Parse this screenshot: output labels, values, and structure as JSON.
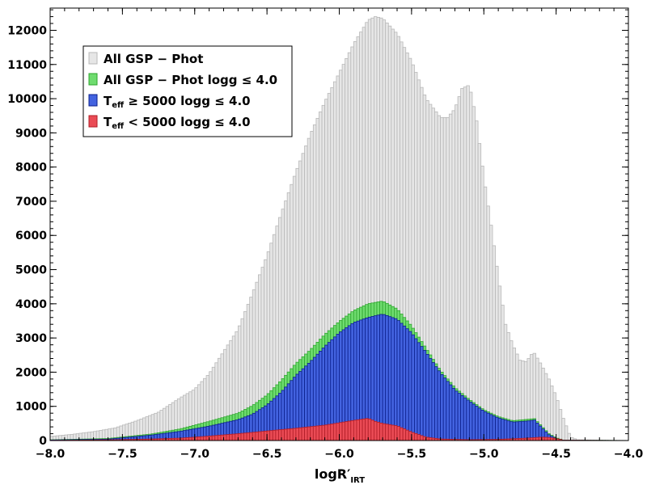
{
  "chart_data": {
    "type": "bar",
    "xlabel": "logR′",
    "xlabel_sub": "IRT",
    "ylabel": "",
    "xlim": [
      -8.0,
      -4.0
    ],
    "ylim": [
      0,
      12650
    ],
    "bin_width": 0.02,
    "x_ticks": [
      "−8.0",
      "−7.5",
      "−7.0",
      "−6.5",
      "−6.0",
      "−5.5",
      "−5.0",
      "−4.5",
      "−4.0"
    ],
    "x_tick_values": [
      -8.0,
      -7.5,
      -7.0,
      -6.5,
      -6.0,
      -5.5,
      -5.0,
      -4.5,
      -4.0
    ],
    "y_ticks": [
      "0",
      "1000",
      "2000",
      "3000",
      "4000",
      "5000",
      "6000",
      "7000",
      "8000",
      "9000",
      "10000",
      "11000",
      "12000"
    ],
    "y_tick_values": [
      0,
      1000,
      2000,
      3000,
      4000,
      5000,
      6000,
      7000,
      8000,
      9000,
      10000,
      11000,
      12000
    ],
    "legend_position": "top-left",
    "legend": [
      {
        "label": "All GSP − Phot",
        "color": "#e6e6e6",
        "edge": "#b8b8b8"
      },
      {
        "label_pre": "All GSP − Phot  logg ",
        "label_sym": "≤",
        "label_post": " 4.0",
        "color": "#6fdc6f",
        "edge": "#2ea52e"
      },
      {
        "label_pre": "T",
        "label_sub": "eff",
        "label_sym": " ≥ ",
        "label_post": "5000  logg ≤ 4.0",
        "color": "#4363e0",
        "edge": "#0b1f8c"
      },
      {
        "label_pre": "T",
        "label_sub": "eff",
        "label_sym": " < ",
        "label_post": "5000  logg ≤ 4.0",
        "color": "#ea4b55",
        "edge": "#b01c26"
      }
    ],
    "series": [
      {
        "name": "All GSP − Phot",
        "color": "#e6e6e6",
        "edge": "#b8b8b8",
        "points": [
          [
            -8.0,
            120
          ],
          [
            -7.85,
            180
          ],
          [
            -7.7,
            260
          ],
          [
            -7.55,
            370
          ],
          [
            -7.4,
            580
          ],
          [
            -7.25,
            830
          ],
          [
            -7.1,
            1250
          ],
          [
            -7.0,
            1500
          ],
          [
            -6.9,
            1950
          ],
          [
            -6.8,
            2600
          ],
          [
            -6.7,
            3250
          ],
          [
            -6.6,
            4300
          ],
          [
            -6.5,
            5400
          ],
          [
            -6.4,
            6650
          ],
          [
            -6.3,
            7850
          ],
          [
            -6.2,
            8950
          ],
          [
            -6.1,
            9900
          ],
          [
            -6.0,
            10750
          ],
          [
            -5.9,
            11600
          ],
          [
            -5.8,
            12300
          ],
          [
            -5.75,
            12400
          ],
          [
            -5.7,
            12350
          ],
          [
            -5.6,
            11900
          ],
          [
            -5.5,
            11100
          ],
          [
            -5.4,
            10000
          ],
          [
            -5.3,
            9450
          ],
          [
            -5.25,
            9450
          ],
          [
            -5.2,
            9700
          ],
          [
            -5.15,
            10300
          ],
          [
            -5.1,
            10400
          ],
          [
            -5.05,
            9350
          ],
          [
            -5.0,
            7700
          ],
          [
            -4.95,
            6300
          ],
          [
            -4.9,
            4800
          ],
          [
            -4.85,
            3400
          ],
          [
            -4.8,
            2800
          ],
          [
            -4.75,
            2350
          ],
          [
            -4.7,
            2300
          ],
          [
            -4.68,
            2500
          ],
          [
            -4.65,
            2550
          ],
          [
            -4.6,
            2200
          ],
          [
            -4.55,
            1800
          ],
          [
            -4.5,
            1300
          ],
          [
            -4.45,
            650
          ],
          [
            -4.4,
            100
          ],
          [
            -4.35,
            20
          ],
          [
            -4.0,
            5
          ]
        ]
      },
      {
        "name": "All GSP − Phot logg ≤ 4.0",
        "color": "#6fdc6f",
        "edge": "#2ea52e",
        "points": [
          [
            -8.0,
            20
          ],
          [
            -7.6,
            60
          ],
          [
            -7.3,
            190
          ],
          [
            -7.1,
            340
          ],
          [
            -6.9,
            560
          ],
          [
            -6.7,
            800
          ],
          [
            -6.6,
            1020
          ],
          [
            -6.5,
            1330
          ],
          [
            -6.4,
            1760
          ],
          [
            -6.3,
            2250
          ],
          [
            -6.2,
            2650
          ],
          [
            -6.1,
            3100
          ],
          [
            -6.0,
            3480
          ],
          [
            -5.9,
            3800
          ],
          [
            -5.8,
            4000
          ],
          [
            -5.7,
            4080
          ],
          [
            -5.6,
            3850
          ],
          [
            -5.5,
            3350
          ],
          [
            -5.4,
            2700
          ],
          [
            -5.3,
            2050
          ],
          [
            -5.2,
            1550
          ],
          [
            -5.1,
            1200
          ],
          [
            -5.0,
            900
          ],
          [
            -4.9,
            700
          ],
          [
            -4.8,
            580
          ],
          [
            -4.7,
            620
          ],
          [
            -4.65,
            640
          ],
          [
            -4.6,
            420
          ],
          [
            -4.55,
            200
          ],
          [
            -4.5,
            80
          ],
          [
            -4.45,
            15
          ],
          [
            -4.0,
            0
          ]
        ]
      },
      {
        "name": "Teff ≥ 5000 logg ≤ 4.0",
        "color": "#4363e0",
        "edge": "#0b1f8c",
        "points": [
          [
            -8.0,
            15
          ],
          [
            -7.6,
            40
          ],
          [
            -7.3,
            160
          ],
          [
            -7.1,
            270
          ],
          [
            -6.9,
            420
          ],
          [
            -6.7,
            610
          ],
          [
            -6.6,
            770
          ],
          [
            -6.5,
            1040
          ],
          [
            -6.4,
            1420
          ],
          [
            -6.3,
            1900
          ],
          [
            -6.2,
            2300
          ],
          [
            -6.1,
            2750
          ],
          [
            -6.0,
            3150
          ],
          [
            -5.9,
            3450
          ],
          [
            -5.8,
            3600
          ],
          [
            -5.7,
            3700
          ],
          [
            -5.6,
            3550
          ],
          [
            -5.5,
            3150
          ],
          [
            -5.4,
            2580
          ],
          [
            -5.3,
            1980
          ],
          [
            -5.2,
            1480
          ],
          [
            -5.1,
            1150
          ],
          [
            -5.0,
            860
          ],
          [
            -4.9,
            660
          ],
          [
            -4.8,
            540
          ],
          [
            -4.7,
            570
          ],
          [
            -4.65,
            600
          ],
          [
            -4.6,
            380
          ],
          [
            -4.55,
            170
          ],
          [
            -4.5,
            60
          ],
          [
            -4.45,
            10
          ],
          [
            -4.0,
            0
          ]
        ]
      },
      {
        "name": "Teff < 5000 logg ≤ 4.0",
        "color": "#ea4b55",
        "edge": "#b01c26",
        "points": [
          [
            -8.0,
            5
          ],
          [
            -7.6,
            20
          ],
          [
            -7.3,
            45
          ],
          [
            -7.1,
            70
          ],
          [
            -6.9,
            130
          ],
          [
            -6.7,
            200
          ],
          [
            -6.5,
            280
          ],
          [
            -6.3,
            360
          ],
          [
            -6.1,
            450
          ],
          [
            -6.0,
            520
          ],
          [
            -5.9,
            590
          ],
          [
            -5.85,
            620
          ],
          [
            -5.8,
            650
          ],
          [
            -5.75,
            560
          ],
          [
            -5.7,
            500
          ],
          [
            -5.6,
            430
          ],
          [
            -5.5,
            250
          ],
          [
            -5.4,
            100
          ],
          [
            -5.3,
            45
          ],
          [
            -5.1,
            25
          ],
          [
            -4.9,
            35
          ],
          [
            -4.7,
            70
          ],
          [
            -4.6,
            100
          ],
          [
            -4.55,
            90
          ],
          [
            -4.5,
            60
          ],
          [
            -4.45,
            10
          ],
          [
            -4.0,
            0
          ]
        ]
      }
    ]
  }
}
